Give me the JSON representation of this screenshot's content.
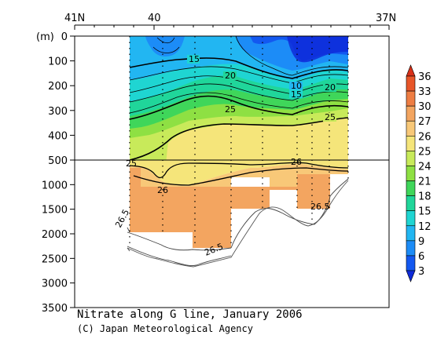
{
  "chart_data": {
    "type": "contour",
    "title": "Nitrate along G line, January 2006",
    "credit": "(C) Japan Meteorological Agency",
    "ylabel": "(m)",
    "x_axis_labels": [
      "41N",
      "40",
      "37N"
    ],
    "depth_ticks_upper": [
      0,
      100,
      200,
      300,
      400,
      500
    ],
    "depth_ticks_lower": [
      1000,
      1500,
      2000,
      2500,
      3000,
      3500
    ],
    "y_range_upper": [
      0,
      500
    ],
    "y_range_lower": [
      500,
      3500
    ],
    "colorbar": {
      "levels": [
        3,
        6,
        9,
        12,
        15,
        18,
        21,
        24,
        25,
        26,
        27,
        30,
        33,
        36
      ],
      "colors": [
        "#0e2ad9",
        "#1358f0",
        "#1c8cf7",
        "#22b6f2",
        "#1fd5d2",
        "#20d69a",
        "#3fd65a",
        "#8ee043",
        "#c8ea5a",
        "#f5e57a",
        "#f8c878",
        "#f3a560",
        "#ee7d43",
        "#e85629",
        "#d83018"
      ]
    },
    "contour_labels": [
      "15",
      "20",
      "10",
      "15",
      "20",
      "25",
      "25"
    ],
    "sigma_labels": [
      "25",
      "26",
      "26",
      "26.5",
      "26.5",
      "26.5"
    ]
  }
}
